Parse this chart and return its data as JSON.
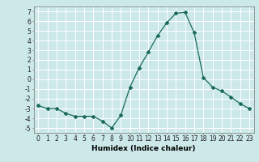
{
  "x": [
    0,
    1,
    2,
    3,
    4,
    5,
    6,
    7,
    8,
    9,
    10,
    11,
    12,
    13,
    14,
    15,
    16,
    17,
    18,
    19,
    20,
    21,
    22,
    23
  ],
  "y": [
    -2.7,
    -3.0,
    -3.0,
    -3.5,
    -3.8,
    -3.8,
    -3.8,
    -4.3,
    -5.0,
    -3.7,
    -0.8,
    1.2,
    2.8,
    4.5,
    5.8,
    6.8,
    6.9,
    4.8,
    0.2,
    -0.8,
    -1.2,
    -1.8,
    -2.5,
    -3.0
  ],
  "xlim": [
    -0.5,
    23.5
  ],
  "ylim": [
    -5.5,
    7.5
  ],
  "yticks": [
    -5,
    -4,
    -3,
    -2,
    -1,
    0,
    1,
    2,
    3,
    4,
    5,
    6,
    7
  ],
  "xticks": [
    0,
    1,
    2,
    3,
    4,
    5,
    6,
    7,
    8,
    9,
    10,
    11,
    12,
    13,
    14,
    15,
    16,
    17,
    18,
    19,
    20,
    21,
    22,
    23
  ],
  "xlabel": "Humidex (Indice chaleur)",
  "line_color": "#1a6b5a",
  "marker": "D",
  "marker_size": 2.0,
  "bg_color": "#cce8e8",
  "grid_color": "#ffffff",
  "tick_label_fontsize": 5.5,
  "xlabel_fontsize": 6.5
}
